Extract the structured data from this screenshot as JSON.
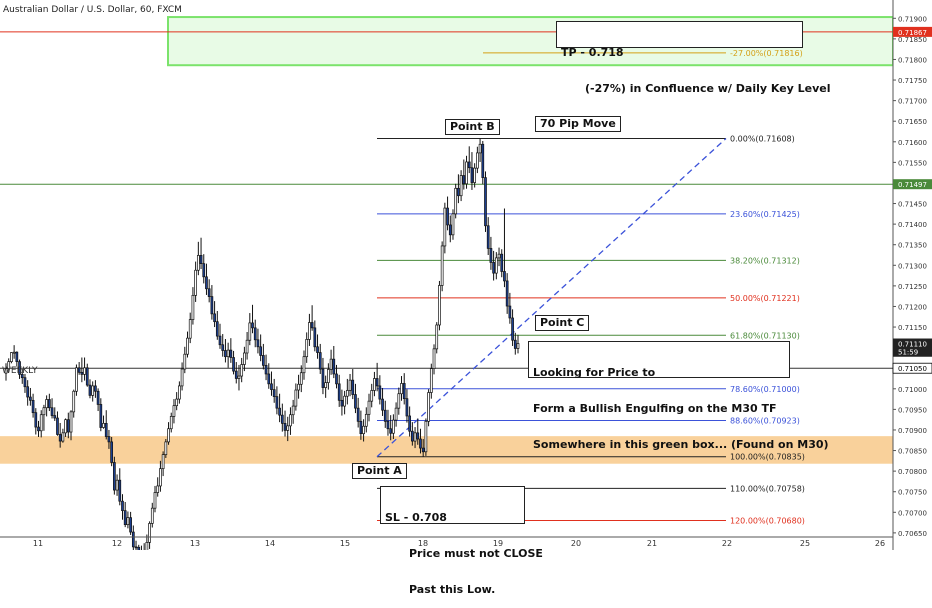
{
  "title": "Australian Dollar / U.S. Dollar, 60, FXCM",
  "colors": {
    "candle_up": "#ffffff",
    "candle_down": "#1c3f8f",
    "wick": "#111111",
    "fib_blue": "#3b52d9",
    "fib_green": "#4a8a3a",
    "fib_red": "#e0301e",
    "fib_black": "#222222",
    "tp_zone_fill": "#e8fbe6",
    "tp_zone_border": "#7be36b",
    "weekly_zone": "#f8c98a",
    "red_level": "#e0301e",
    "green_level": "#4a8a3a"
  },
  "chart_data": {
    "type": "candlestick",
    "symbol": "AUDUSD",
    "timeframe": "60",
    "y_range": [
      0.7064,
      0.71925
    ],
    "y_ticks": [
      "0.71900",
      "0.71850",
      "0.71800",
      "0.71750",
      "0.71700",
      "0.71650",
      "0.71600",
      "0.71550",
      "0.71500",
      "0.71450",
      "0.71400",
      "0.71350",
      "0.71300",
      "0.71250",
      "0.71200",
      "0.71150",
      "0.71100",
      "0.71050",
      "0.71000",
      "0.70950",
      "0.70900",
      "0.70850",
      "0.70800",
      "0.70750",
      "0.70700",
      "0.70650"
    ],
    "x_labels": [
      "11",
      "12",
      "13",
      "14",
      "15",
      "18",
      "19",
      "20",
      "21",
      "22",
      "25",
      "26"
    ],
    "fib_levels": [
      {
        "label": "0.00%(0.71608)",
        "value": 0.71608,
        "color": "#222222"
      },
      {
        "label": "23.60%(0.71425)",
        "value": 0.71425,
        "color": "#3b52d9"
      },
      {
        "label": "38.20%(0.71312)",
        "value": 0.71312,
        "color": "#4a8a3a"
      },
      {
        "label": "50.00%(0.71221)",
        "value": 0.71221,
        "color": "#e0301e"
      },
      {
        "label": "61.80%(0.71130)",
        "value": 0.7113,
        "color": "#4a8a3a"
      },
      {
        "label": "78.60%(0.71000)",
        "value": 0.71,
        "color": "#3b52d9"
      },
      {
        "label": "88.60%(0.70923)",
        "value": 0.70923,
        "color": "#3b52d9"
      },
      {
        "label": "100.00%(0.70835)",
        "value": 0.70835,
        "color": "#222222"
      },
      {
        "label": "110.00%(0.70758)",
        "value": 0.70758,
        "color": "#222222"
      },
      {
        "label": "120.00%(0.70680)",
        "value": 0.7068,
        "color": "#e0301e"
      },
      {
        "label": "-27.00%(0.71816)",
        "value": 0.71816,
        "color": "#d4a017"
      }
    ],
    "price_labels": [
      {
        "text": "0.71867",
        "value": 0.71867,
        "color": "#e0301e"
      },
      {
        "text": "0.71497",
        "value": 0.71497,
        "color": "#4a8a3a"
      },
      {
        "text": "0.71050",
        "value": 0.7105,
        "color": "#000000"
      },
      {
        "text": "0.71110",
        "value": 0.7111,
        "color": "#ffffff"
      },
      {
        "text": "51:59",
        "value": 0.7109,
        "color": "#ffffff"
      }
    ],
    "tp_zone": [
      0.71786,
      0.71903
    ],
    "weekly_zone": [
      0.70818,
      0.70885
    ],
    "weekly_level": 0.7105,
    "point_a": 0.70835,
    "point_b": 0.71608,
    "candles": [
      [
        0.71038,
        0.71062,
        0.7102,
        0.71049
      ],
      [
        0.71049,
        0.71074,
        0.7104,
        0.71066
      ],
      [
        0.71066,
        0.71089,
        0.71062,
        0.71088
      ],
      [
        0.71088,
        0.71106,
        0.71073,
        0.71089
      ],
      [
        0.71089,
        0.71091,
        0.71054,
        0.71066
      ],
      [
        0.71066,
        0.71071,
        0.71024,
        0.71035
      ],
      [
        0.71035,
        0.71048,
        0.71012,
        0.71027
      ],
      [
        0.71027,
        0.71036,
        0.7099,
        0.71005
      ],
      [
        0.71005,
        0.71021,
        0.70959,
        0.7098
      ],
      [
        0.7098,
        0.71002,
        0.70959,
        0.70972
      ],
      [
        0.70972,
        0.70988,
        0.7093,
        0.70942
      ],
      [
        0.70942,
        0.70953,
        0.70889,
        0.70907
      ],
      [
        0.70907,
        0.70922,
        0.70883,
        0.70898
      ],
      [
        0.70898,
        0.70948,
        0.70882,
        0.70937
      ],
      [
        0.70937,
        0.70961,
        0.70898,
        0.70954
      ],
      [
        0.70954,
        0.70984,
        0.70933,
        0.70974
      ],
      [
        0.70974,
        0.70988,
        0.70946,
        0.70954
      ],
      [
        0.70954,
        0.70977,
        0.70928,
        0.70935
      ],
      [
        0.70935,
        0.70955,
        0.70922,
        0.70929
      ],
      [
        0.70929,
        0.70945,
        0.70886,
        0.70889
      ],
      [
        0.70889,
        0.70917,
        0.70857,
        0.70873
      ],
      [
        0.70873,
        0.70903,
        0.70869,
        0.70893
      ],
      [
        0.70893,
        0.70928,
        0.70883,
        0.70925
      ],
      [
        0.70925,
        0.70942,
        0.7088,
        0.70895
      ],
      [
        0.70895,
        0.70948,
        0.70875,
        0.70944
      ],
      [
        0.70944,
        0.70998,
        0.7093,
        0.70994
      ],
      [
        0.70994,
        0.71059,
        0.70983,
        0.71051
      ],
      [
        0.71051,
        0.71065,
        0.71034,
        0.7104
      ],
      [
        0.7104,
        0.71076,
        0.71016,
        0.71035
      ],
      [
        0.71035,
        0.71076,
        0.7102,
        0.71051
      ],
      [
        0.71051,
        0.71061,
        0.71005,
        0.71009
      ],
      [
        0.71009,
        0.71023,
        0.70977,
        0.70984
      ],
      [
        0.70984,
        0.71018,
        0.70969,
        0.71007
      ],
      [
        0.71007,
        0.71021,
        0.70978,
        0.70994
      ],
      [
        0.70994,
        0.71001,
        0.70946,
        0.70962
      ],
      [
        0.70962,
        0.70977,
        0.70897,
        0.70906
      ],
      [
        0.70906,
        0.70935,
        0.70903,
        0.70916
      ],
      [
        0.70916,
        0.70948,
        0.70877,
        0.70884
      ],
      [
        0.70884,
        0.709,
        0.70854,
        0.70871
      ],
      [
        0.70871,
        0.70883,
        0.70812,
        0.70821
      ],
      [
        0.70821,
        0.70835,
        0.70743,
        0.70754
      ],
      [
        0.70754,
        0.70792,
        0.7074,
        0.70778
      ],
      [
        0.70778,
        0.70807,
        0.70717,
        0.70727
      ],
      [
        0.70727,
        0.70744,
        0.70682,
        0.70704
      ],
      [
        0.70704,
        0.70725,
        0.70664,
        0.7067
      ],
      [
        0.7067,
        0.70702,
        0.70661,
        0.70687
      ],
      [
        0.70687,
        0.70701,
        0.70645,
        0.70652
      ],
      [
        0.70652,
        0.70668,
        0.70604,
        0.70616
      ],
      [
        0.70616,
        0.70631,
        0.70601,
        0.70615
      ],
      [
        0.70615,
        0.70621,
        0.70584,
        0.70606
      ],
      [
        0.70606,
        0.70619,
        0.70579,
        0.70603
      ],
      [
        0.70603,
        0.70625,
        0.70581,
        0.70593
      ],
      [
        0.70593,
        0.70646,
        0.70575,
        0.70627
      ],
      [
        0.70627,
        0.70678,
        0.70611,
        0.70673
      ],
      [
        0.70673,
        0.70723,
        0.70663,
        0.7071
      ],
      [
        0.7071,
        0.70764,
        0.707,
        0.70748
      ],
      [
        0.70748,
        0.70785,
        0.70738,
        0.70764
      ],
      [
        0.70764,
        0.70825,
        0.7075,
        0.70806
      ],
      [
        0.70806,
        0.70848,
        0.70788,
        0.7084
      ],
      [
        0.7084,
        0.70878,
        0.70832,
        0.70871
      ],
      [
        0.70871,
        0.70919,
        0.70864,
        0.70903
      ],
      [
        0.70903,
        0.70942,
        0.70894,
        0.70933
      ],
      [
        0.70933,
        0.70975,
        0.70916,
        0.70959
      ],
      [
        0.70959,
        0.70992,
        0.70948,
        0.70975
      ],
      [
        0.70975,
        0.71018,
        0.70964,
        0.71007
      ],
      [
        0.71007,
        0.71064,
        0.70996,
        0.71048
      ],
      [
        0.71048,
        0.71102,
        0.71038,
        0.71084
      ],
      [
        0.71084,
        0.71139,
        0.71076,
        0.71123
      ],
      [
        0.71123,
        0.71185,
        0.71111,
        0.71168
      ],
      [
        0.71168,
        0.71247,
        0.71156,
        0.71227
      ],
      [
        0.71227,
        0.71309,
        0.71211,
        0.71288
      ],
      [
        0.71288,
        0.71357,
        0.71276,
        0.71324
      ],
      [
        0.71324,
        0.71367,
        0.71291,
        0.71304
      ],
      [
        0.71304,
        0.71327,
        0.71256,
        0.71272
      ],
      [
        0.71272,
        0.71304,
        0.71228,
        0.71243
      ],
      [
        0.71243,
        0.71266,
        0.7121,
        0.71224
      ],
      [
        0.71224,
        0.71252,
        0.71168,
        0.71182
      ],
      [
        0.71182,
        0.71213,
        0.7115,
        0.71163
      ],
      [
        0.71163,
        0.71189,
        0.71119,
        0.71128
      ],
      [
        0.71128,
        0.71158,
        0.71097,
        0.71107
      ],
      [
        0.71107,
        0.71133,
        0.71078,
        0.71093
      ],
      [
        0.71093,
        0.71121,
        0.71064,
        0.71078
      ],
      [
        0.71078,
        0.71112,
        0.71051,
        0.71094
      ],
      [
        0.71094,
        0.71123,
        0.71063,
        0.71076
      ],
      [
        0.71076,
        0.71092,
        0.71035,
        0.71043
      ],
      [
        0.71043,
        0.71065,
        0.71013,
        0.71025
      ],
      [
        0.71025,
        0.71058,
        0.70996,
        0.71031
      ],
      [
        0.71031,
        0.71075,
        0.71016,
        0.71059
      ],
      [
        0.71059,
        0.71102,
        0.71043,
        0.71087
      ],
      [
        0.71087,
        0.71138,
        0.71071,
        0.71118
      ],
      [
        0.71118,
        0.71184,
        0.71106,
        0.7116
      ],
      [
        0.7116,
        0.71204,
        0.71135,
        0.71148
      ],
      [
        0.71148,
        0.71168,
        0.71101,
        0.71119
      ],
      [
        0.71119,
        0.71146,
        0.71086,
        0.71102
      ],
      [
        0.71102,
        0.71132,
        0.71067,
        0.71081
      ],
      [
        0.71081,
        0.71109,
        0.71047,
        0.71057
      ],
      [
        0.71057,
        0.71083,
        0.71021,
        0.71036
      ],
      [
        0.71036,
        0.71062,
        0.71,
        0.71012
      ],
      [
        0.71012,
        0.71042,
        0.70983,
        0.70998
      ],
      [
        0.70998,
        0.71024,
        0.70966,
        0.70981
      ],
      [
        0.70981,
        0.71006,
        0.70938,
        0.70953
      ],
      [
        0.70953,
        0.70988,
        0.70919,
        0.70936
      ],
      [
        0.70936,
        0.70964,
        0.70896,
        0.70916
      ],
      [
        0.70916,
        0.70947,
        0.70884,
        0.70899
      ],
      [
        0.70899,
        0.70932,
        0.70873,
        0.7091
      ],
      [
        0.7091,
        0.70955,
        0.70888,
        0.70937
      ],
      [
        0.70937,
        0.70973,
        0.70915,
        0.70958
      ],
      [
        0.70958,
        0.71013,
        0.70947,
        0.70997
      ],
      [
        0.70997,
        0.71034,
        0.70976,
        0.71011
      ],
      [
        0.71011,
        0.71057,
        0.70992,
        0.71039
      ],
      [
        0.71039,
        0.71093,
        0.71022,
        0.71078
      ],
      [
        0.71078,
        0.71137,
        0.71063,
        0.7112
      ],
      [
        0.7112,
        0.71182,
        0.71104,
        0.71161
      ],
      [
        0.71161,
        0.71203,
        0.71141,
        0.71148
      ],
      [
        0.71148,
        0.71166,
        0.71091,
        0.71102
      ],
      [
        0.71102,
        0.71132,
        0.71073,
        0.71088
      ],
      [
        0.71088,
        0.71109,
        0.71036,
        0.71048
      ],
      [
        0.71048,
        0.71075,
        0.70987,
        0.71003
      ],
      [
        0.71003,
        0.71032,
        0.70978,
        0.71015
      ],
      [
        0.71015,
        0.71062,
        0.70998,
        0.71047
      ],
      [
        0.71047,
        0.71095,
        0.71034,
        0.71072
      ],
      [
        0.71072,
        0.71104,
        0.71026,
        0.71036
      ],
      [
        0.71036,
        0.71058,
        0.71001,
        0.71012
      ],
      [
        0.71012,
        0.71034,
        0.70956,
        0.70972
      ],
      [
        0.70972,
        0.70998,
        0.70935,
        0.70958
      ],
      [
        0.70958,
        0.70995,
        0.70938,
        0.70982
      ],
      [
        0.70982,
        0.71024,
        0.70962,
        0.70996
      ],
      [
        0.70996,
        0.71036,
        0.70982,
        0.71021
      ],
      [
        0.71021,
        0.71048,
        0.70975,
        0.70986
      ],
      [
        0.70986,
        0.71012,
        0.70941,
        0.70953
      ],
      [
        0.70953,
        0.70978,
        0.70906,
        0.70921
      ],
      [
        0.70921,
        0.70947,
        0.70876,
        0.70891
      ],
      [
        0.70891,
        0.70926,
        0.70872,
        0.70909
      ],
      [
        0.70909,
        0.70955,
        0.70894,
        0.70938
      ],
      [
        0.70938,
        0.70988,
        0.70921,
        0.7097
      ],
      [
        0.7097,
        0.71012,
        0.70955,
        0.70996
      ],
      [
        0.70996,
        0.71041,
        0.70982,
        0.71025
      ],
      [
        0.71025,
        0.71063,
        0.70994,
        0.71007
      ],
      [
        0.71007,
        0.71033,
        0.70962,
        0.70975
      ],
      [
        0.70975,
        0.71002,
        0.70934,
        0.70948
      ],
      [
        0.70948,
        0.70971,
        0.70905,
        0.70921
      ],
      [
        0.70921,
        0.70949,
        0.70886,
        0.70903
      ],
      [
        0.70903,
        0.70936,
        0.70875,
        0.70892
      ],
      [
        0.70892,
        0.70938,
        0.70878,
        0.70924
      ],
      [
        0.70924,
        0.70967,
        0.70908,
        0.70953
      ],
      [
        0.70953,
        0.71003,
        0.70937,
        0.70988
      ],
      [
        0.70988,
        0.71031,
        0.70971,
        0.71013
      ],
      [
        0.71013,
        0.71038,
        0.70962,
        0.70976
      ],
      [
        0.70976,
        0.70999,
        0.70918,
        0.70934
      ],
      [
        0.70934,
        0.70957,
        0.70884,
        0.70897
      ],
      [
        0.70897,
        0.70919,
        0.70862,
        0.70873
      ],
      [
        0.70873,
        0.70907,
        0.70856,
        0.70893
      ],
      [
        0.70893,
        0.70928,
        0.70864,
        0.70878
      ],
      [
        0.70878,
        0.70903,
        0.70843,
        0.70856
      ],
      [
        0.70856,
        0.70878,
        0.70835,
        0.70847
      ],
      [
        0.70847,
        0.70928,
        0.70837,
        0.70921
      ],
      [
        0.70921,
        0.70999,
        0.70909,
        0.70991
      ],
      [
        0.70991,
        0.71061,
        0.70976,
        0.71049
      ],
      [
        0.71049,
        0.71108,
        0.71035,
        0.71097
      ],
      [
        0.71097,
        0.71162,
        0.71086,
        0.71155
      ],
      [
        0.71155,
        0.71262,
        0.71142,
        0.71251
      ],
      [
        0.71251,
        0.71358,
        0.71237,
        0.71347
      ],
      [
        0.71347,
        0.71452,
        0.71329,
        0.71439
      ],
      [
        0.71439,
        0.71467,
        0.71385,
        0.71398
      ],
      [
        0.71398,
        0.71421,
        0.71356,
        0.71374
      ],
      [
        0.71374,
        0.71436,
        0.71362,
        0.71425
      ],
      [
        0.71425,
        0.71498,
        0.71414,
        0.71487
      ],
      [
        0.71487,
        0.71521,
        0.71451,
        0.71469
      ],
      [
        0.71469,
        0.71531,
        0.71456,
        0.71518
      ],
      [
        0.71518,
        0.71557,
        0.71484,
        0.71498
      ],
      [
        0.71498,
        0.71566,
        0.71486,
        0.71551
      ],
      [
        0.71551,
        0.71589,
        0.71524,
        0.71537
      ],
      [
        0.71537,
        0.71575,
        0.71483,
        0.71501
      ],
      [
        0.71501,
        0.71548,
        0.71489,
        0.71536
      ],
      [
        0.71536,
        0.71588,
        0.71524,
        0.71573
      ],
      [
        0.71573,
        0.71608,
        0.71551,
        0.71594
      ],
      [
        0.71594,
        0.71602,
        0.71497,
        0.71513
      ],
      [
        0.71513,
        0.71528,
        0.71381,
        0.71396
      ],
      [
        0.71396,
        0.71417,
        0.71325,
        0.71341
      ],
      [
        0.71341,
        0.71369,
        0.71289,
        0.71307
      ],
      [
        0.71307,
        0.71335,
        0.71263,
        0.71281
      ],
      [
        0.71281,
        0.71332,
        0.71266,
        0.71318
      ],
      [
        0.71318,
        0.71343,
        0.71298,
        0.71327
      ],
      [
        0.71327,
        0.71339,
        0.71271,
        0.71285
      ],
      [
        0.71285,
        0.71438,
        0.71247,
        0.71262
      ],
      [
        0.71262,
        0.71281,
        0.71182,
        0.71201
      ],
      [
        0.71201,
        0.71233,
        0.71158,
        0.71172
      ],
      [
        0.71172,
        0.71193,
        0.71104,
        0.71118
      ],
      [
        0.71118,
        0.71136,
        0.71083,
        0.71098
      ],
      [
        0.71098,
        0.71131,
        0.71086,
        0.7111
      ]
    ]
  },
  "annotations": {
    "tp_line1": "TP - 0.718",
    "tp_line2": "(-27%) in Confluence w/ Daily Key Level",
    "move": "70 Pip Move",
    "point_a": "Point A",
    "point_b": "Point B",
    "point_c": "Point C",
    "note_line1": "Looking for Price to",
    "note_line2": "Form a Bullish Engulfing on the M30 TF",
    "note_line3": "Somewhere in this green box... (Found on M30)",
    "sl_line1": "SL - 0.708",
    "sl_line2": "Price must not CLOSE",
    "sl_line3": "Past this Low.",
    "weekly": "WEEKLY"
  }
}
